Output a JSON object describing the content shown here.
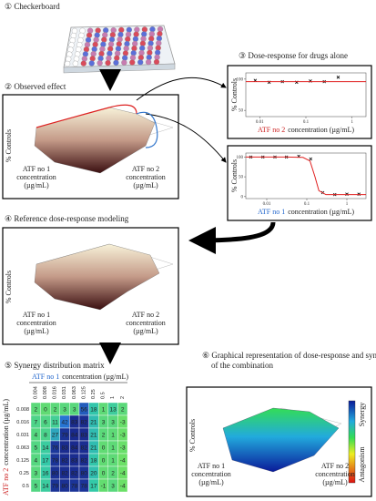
{
  "sections": {
    "s1": "① Checkerboard",
    "s2": "② Observed effect",
    "s3": "③ Dose-response for drugs alone",
    "s4": "④ Reference dose-response modeling",
    "s5": "⑤ Synergy distribution matrix",
    "s6_line1": "⑥ Graphical representation of dose-response and synergy",
    "s6_line2": "of the combination"
  },
  "labels": {
    "drug1": "ATF no 1",
    "drug2": "ATF no 2",
    "concentration": "concentration",
    "unit": "(µg/mL)",
    "controls": "% Controls",
    "synergy": "Synergy",
    "antagonism": "Antagonism"
  },
  "chart_data": [
    {
      "type": "line",
      "x_log": true,
      "xlim": [
        0.005,
        2
      ],
      "xticks": [
        0.01,
        0.1,
        1
      ],
      "ylim": [
        40,
        110
      ],
      "yticks": [
        50,
        100
      ],
      "series": [
        {
          "color": "#000000",
          "marker": "x",
          "x": [
            0.008,
            0.016,
            0.031,
            0.063,
            0.125,
            0.25,
            0.5
          ],
          "values": [
            98,
            95,
            96,
            95,
            97,
            96,
            103
          ]
        },
        {
          "color": "#e02020",
          "x": [
            0.005,
            2
          ],
          "values": [
            96,
            96
          ]
        }
      ]
    },
    {
      "type": "line",
      "x_log": true,
      "xlim": [
        0.003,
        3
      ],
      "xticks": [
        0.01,
        0.1,
        1
      ],
      "ylim": [
        -5,
        110
      ],
      "yticks": [
        0,
        50,
        100
      ],
      "series": [
        {
          "color": "#000000",
          "marker": "x",
          "x": [
            0.004,
            0.008,
            0.016,
            0.031,
            0.063,
            0.125,
            0.25,
            0.5,
            1,
            2
          ],
          "values": [
            100,
            100,
            100,
            100,
            102,
            95,
            10,
            5,
            6,
            6
          ]
        },
        {
          "color": "#e02020",
          "x": [
            0.003,
            0.03,
            0.08,
            0.12,
            0.16,
            0.2,
            0.3,
            3
          ],
          "values": [
            100,
            100,
            99,
            90,
            50,
            15,
            5,
            5
          ]
        }
      ]
    }
  ],
  "matrix": {
    "columns": [
      0.004,
      0.008,
      0.016,
      0.031,
      0.063,
      0.125,
      0.25,
      0.5,
      1,
      2
    ],
    "rows": [
      0.008,
      0.016,
      0.031,
      0.063,
      0.125,
      0.25,
      0.5
    ],
    "values": [
      [
        2,
        0,
        2,
        3,
        3,
        56,
        18,
        1,
        13,
        2
      ],
      [
        7,
        6,
        11,
        42,
        83,
        82,
        21,
        3,
        3,
        -3
      ],
      [
        4,
        8,
        27,
        79,
        84,
        83,
        21,
        2,
        1,
        -3
      ],
      [
        5,
        14,
        76,
        83,
        84,
        82,
        21,
        0,
        1,
        -3
      ],
      [
        4,
        17,
        78,
        82,
        83,
        82,
        18,
        0,
        1,
        -4
      ],
      [
        3,
        16,
        80,
        82,
        82,
        80,
        20,
        0,
        2,
        -4
      ],
      [
        5,
        14,
        79,
        80,
        78,
        78,
        17,
        -1,
        3,
        -4
      ]
    ]
  }
}
